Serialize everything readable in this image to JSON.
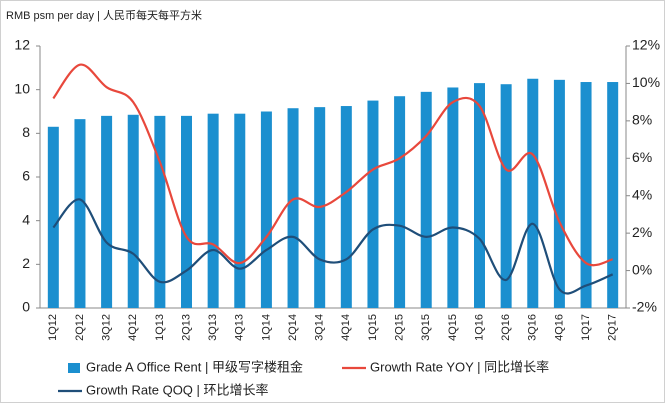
{
  "chart_data": {
    "type": "bar_line_combo",
    "subtitle": "RMB psm per day | 人民币每天每平方米",
    "categories": [
      "1Q12",
      "2Q12",
      "3Q12",
      "4Q12",
      "1Q13",
      "2Q13",
      "3Q13",
      "4Q13",
      "1Q14",
      "2Q14",
      "3Q14",
      "4Q14",
      "1Q15",
      "2Q15",
      "3Q15",
      "4Q15",
      "1Q16",
      "2Q16",
      "3Q16",
      "4Q16",
      "1Q17",
      "2Q17"
    ],
    "series": [
      {
        "name": "Grade A Office Rent | 甲级写字楼租金",
        "type": "bar",
        "color": "#1b8fcf",
        "axis": "y",
        "values": [
          8.3,
          8.65,
          8.8,
          8.85,
          8.8,
          8.8,
          8.9,
          8.9,
          9.0,
          9.15,
          9.2,
          9.25,
          9.5,
          9.7,
          9.9,
          10.1,
          10.3,
          10.25,
          10.5,
          10.45,
          10.35,
          10.35
        ]
      },
      {
        "name": "Growth Rate YOY | 同比增长率",
        "type": "line",
        "color": "#e8483c",
        "axis": "y2",
        "values": [
          9.2,
          11.0,
          9.8,
          9.0,
          5.8,
          1.8,
          1.4,
          0.4,
          1.8,
          3.8,
          3.4,
          4.2,
          5.4,
          6.0,
          7.2,
          9.0,
          8.8,
          5.4,
          6.2,
          2.6,
          0.4,
          0.6
        ]
      },
      {
        "name": "Growth Rate QOQ | 环比增长率",
        "type": "line",
        "color": "#1f4e79",
        "axis": "y2",
        "values": [
          2.3,
          3.8,
          1.5,
          0.9,
          -0.6,
          0.0,
          1.1,
          0.1,
          1.1,
          1.8,
          0.6,
          0.6,
          2.2,
          2.4,
          1.8,
          2.3,
          1.7,
          -0.5,
          2.5,
          -1.0,
          -0.8,
          -0.2
        ]
      }
    ],
    "ylim": [
      0,
      12
    ],
    "yticks": [
      0,
      2,
      4,
      6,
      8,
      10,
      12
    ],
    "y2lim": [
      -2,
      12
    ],
    "y2ticks": [
      {
        "value": -2,
        "label": "-2%"
      },
      {
        "value": 0,
        "label": "0%"
      },
      {
        "value": 2,
        "label": "2%"
      },
      {
        "value": 4,
        "label": "4%"
      },
      {
        "value": 6,
        "label": "6%"
      },
      {
        "value": 8,
        "label": "8%"
      },
      {
        "value": 10,
        "label": "10%"
      },
      {
        "value": 12,
        "label": "12%"
      }
    ],
    "legend": "bottom"
  }
}
